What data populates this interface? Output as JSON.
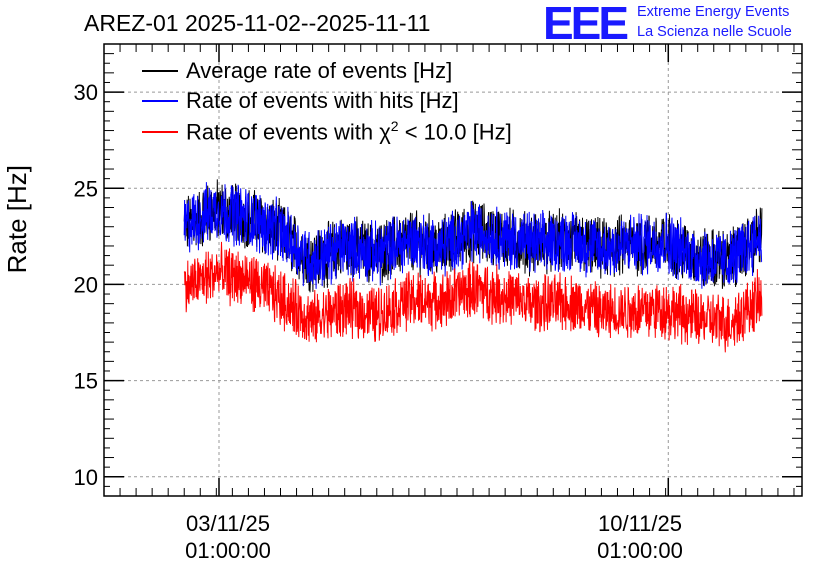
{
  "chart_data": {
    "type": "line",
    "title": "AREZ-01 2025-11-02--2025-11-11",
    "ylabel": "Rate [Hz]",
    "xlabel": "",
    "ylim": [
      9,
      32.5
    ],
    "yticks": [
      "10",
      "15",
      "20",
      "25",
      "30"
    ],
    "xticks": [
      {
        "date": "03/11/25",
        "time": "01:00:00",
        "x": "2025-11-03T01:00:00"
      },
      {
        "date": "10/11/25",
        "time": "01:00:00",
        "x": "2025-11-10T01:00:00"
      }
    ],
    "xlim": [
      "2025-11-01T06:00:00",
      "2025-11-12T03:00:00"
    ],
    "grid": true,
    "legend_position": "top-left",
    "series": [
      {
        "name": "Average rate of events [Hz]",
        "color": "#000000",
        "x": [
          "2025-11-02T12:00",
          "2025-11-03T00:00",
          "2025-11-03T12:00",
          "2025-11-04T00:00",
          "2025-11-04T12:00",
          "2025-11-05T00:00",
          "2025-11-05T12:00",
          "2025-11-06T00:00",
          "2025-11-06T12:00",
          "2025-11-07T00:00",
          "2025-11-07T12:00",
          "2025-11-08T00:00",
          "2025-11-08T12:00",
          "2025-11-09T00:00",
          "2025-11-09T12:00",
          "2025-11-10T00:00",
          "2025-11-10T12:00",
          "2025-11-11T00:00",
          "2025-11-11T12:00"
        ],
        "y": [
          23.0,
          23.9,
          23.5,
          22.7,
          21.2,
          22.0,
          21.6,
          22.3,
          21.9,
          22.8,
          22.4,
          22.1,
          22.3,
          21.8,
          22.1,
          22.2,
          21.4,
          21.2,
          22.6
        ]
      },
      {
        "name": "Rate of events with hits [Hz]",
        "color": "#0000ff",
        "x": [
          "2025-11-02T12:00",
          "2025-11-03T00:00",
          "2025-11-03T12:00",
          "2025-11-04T00:00",
          "2025-11-04T12:00",
          "2025-11-05T00:00",
          "2025-11-05T12:00",
          "2025-11-06T00:00",
          "2025-11-06T12:00",
          "2025-11-07T00:00",
          "2025-11-07T12:00",
          "2025-11-08T00:00",
          "2025-11-08T12:00",
          "2025-11-09T00:00",
          "2025-11-09T12:00",
          "2025-11-10T00:00",
          "2025-11-10T12:00",
          "2025-11-11T00:00",
          "2025-11-11T12:00"
        ],
        "y": [
          23.0,
          23.9,
          23.5,
          22.7,
          21.2,
          22.0,
          21.6,
          22.3,
          21.9,
          22.8,
          22.4,
          22.1,
          22.3,
          21.8,
          22.1,
          22.2,
          21.4,
          21.2,
          22.6
        ]
      },
      {
        "name": "Rate of events with χ² < 10.0 [Hz]",
        "color": "#ff0000",
        "x": [
          "2025-11-02T12:00",
          "2025-11-03T00:00",
          "2025-11-03T12:00",
          "2025-11-04T00:00",
          "2025-11-04T12:00",
          "2025-11-05T00:00",
          "2025-11-05T12:00",
          "2025-11-06T00:00",
          "2025-11-06T12:00",
          "2025-11-07T00:00",
          "2025-11-07T12:00",
          "2025-11-08T00:00",
          "2025-11-08T12:00",
          "2025-11-09T00:00",
          "2025-11-09T12:00",
          "2025-11-10T00:00",
          "2025-11-10T12:00",
          "2025-11-11T00:00",
          "2025-11-11T12:00"
        ],
        "y": [
          19.8,
          20.6,
          20.2,
          19.3,
          18.1,
          18.8,
          18.4,
          19.2,
          19.1,
          19.8,
          19.4,
          18.9,
          19.1,
          18.5,
          18.7,
          18.7,
          18.2,
          18.0,
          19.3
        ]
      }
    ]
  },
  "legend": {
    "average_label": "Average rate of events [Hz]",
    "hits_label": "Rate of events with hits [Hz]",
    "chi2_label_prefix": "Rate of events with ",
    "chi2_symbol": "χ",
    "chi2_power": "2",
    "chi2_label_suffix": " < 10.0 [Hz]"
  },
  "logo": {
    "mark": "EEE",
    "line1": "Extreme Energy Events",
    "line2": "La Scienza nelle Scuole",
    "color": "#1a1aff"
  }
}
